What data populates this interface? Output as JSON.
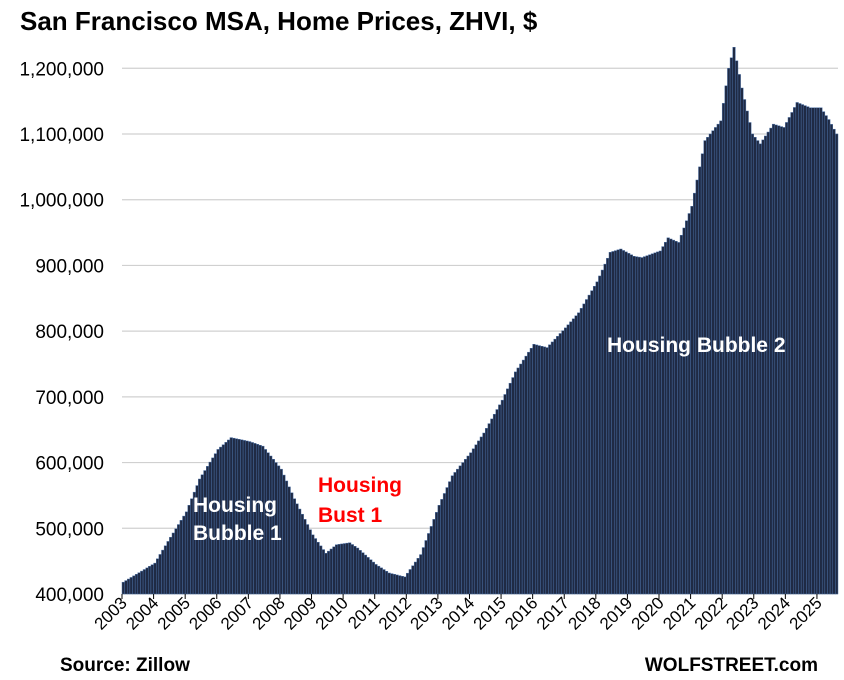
{
  "chart_data": {
    "type": "bar",
    "title": "San Francisco MSA, Home Prices, ZHVI, $",
    "ylim": [
      400000,
      1240000
    ],
    "yticks": [
      400000,
      500000,
      600000,
      700000,
      800000,
      900000,
      1000000,
      1100000,
      1200000
    ],
    "ytick_labels": [
      "400,000",
      "500,000",
      "600,000",
      "700,000",
      "800,000",
      "900,000",
      "1,000,000",
      "1,100,000",
      "1,200,000"
    ],
    "xtick_labels": [
      "2003",
      "2004",
      "2005",
      "2006",
      "2007",
      "2008",
      "2009",
      "2010",
      "2011",
      "2012",
      "2013",
      "2014",
      "2015",
      "2016",
      "2017",
      "2018",
      "2019",
      "2020",
      "2021",
      "2022",
      "2023",
      "2024",
      "2025"
    ],
    "x_start": "2003-01",
    "x_end": "2025-08",
    "grid": true,
    "series": [
      {
        "key_points": [
          {
            "date": "2003-01",
            "value": 418000
          },
          {
            "date": "2003-06",
            "value": 430000
          },
          {
            "date": "2004-01",
            "value": 447000
          },
          {
            "date": "2004-06",
            "value": 480000
          },
          {
            "date": "2005-01",
            "value": 525000
          },
          {
            "date": "2005-06",
            "value": 575000
          },
          {
            "date": "2006-01",
            "value": 620000
          },
          {
            "date": "2006-06",
            "value": 638000
          },
          {
            "date": "2007-01",
            "value": 632000
          },
          {
            "date": "2007-06",
            "value": 625000
          },
          {
            "date": "2008-01",
            "value": 590000
          },
          {
            "date": "2008-06",
            "value": 545000
          },
          {
            "date": "2009-01",
            "value": 490000
          },
          {
            "date": "2009-06",
            "value": 462000
          },
          {
            "date": "2009-10",
            "value": 475000
          },
          {
            "date": "2010-03",
            "value": 478000
          },
          {
            "date": "2010-06",
            "value": 470000
          },
          {
            "date": "2011-01",
            "value": 445000
          },
          {
            "date": "2011-06",
            "value": 432000
          },
          {
            "date": "2011-12",
            "value": 426000
          },
          {
            "date": "2012-06",
            "value": 460000
          },
          {
            "date": "2013-01",
            "value": 535000
          },
          {
            "date": "2013-06",
            "value": 580000
          },
          {
            "date": "2014-01",
            "value": 615000
          },
          {
            "date": "2014-06",
            "value": 645000
          },
          {
            "date": "2015-01",
            "value": 695000
          },
          {
            "date": "2015-06",
            "value": 738000
          },
          {
            "date": "2016-01",
            "value": 780000
          },
          {
            "date": "2016-06",
            "value": 775000
          },
          {
            "date": "2017-01",
            "value": 805000
          },
          {
            "date": "2017-06",
            "value": 828000
          },
          {
            "date": "2018-01",
            "value": 875000
          },
          {
            "date": "2018-06",
            "value": 920000
          },
          {
            "date": "2018-10",
            "value": 925000
          },
          {
            "date": "2019-03",
            "value": 914000
          },
          {
            "date": "2019-06",
            "value": 912000
          },
          {
            "date": "2020-01",
            "value": 922000
          },
          {
            "date": "2020-04",
            "value": 942000
          },
          {
            "date": "2020-08",
            "value": 935000
          },
          {
            "date": "2021-01",
            "value": 990000
          },
          {
            "date": "2021-06",
            "value": 1090000
          },
          {
            "date": "2021-12",
            "value": 1120000
          },
          {
            "date": "2022-03",
            "value": 1200000
          },
          {
            "date": "2022-05",
            "value": 1232000
          },
          {
            "date": "2022-08",
            "value": 1170000
          },
          {
            "date": "2022-12",
            "value": 1100000
          },
          {
            "date": "2023-03",
            "value": 1085000
          },
          {
            "date": "2023-08",
            "value": 1115000
          },
          {
            "date": "2023-12",
            "value": 1110000
          },
          {
            "date": "2024-05",
            "value": 1148000
          },
          {
            "date": "2024-10",
            "value": 1140000
          },
          {
            "date": "2025-02",
            "value": 1140000
          },
          {
            "date": "2025-05",
            "value": 1122000
          },
          {
            "date": "2025-08",
            "value": 1100000
          }
        ]
      }
    ],
    "annotations": [
      {
        "text": "Housing Bubble 1",
        "lines": [
          "Housing",
          "Bubble 1"
        ],
        "color": "#ffffff"
      },
      {
        "text": "Housing Bust 1",
        "lines": [
          "Housing",
          "Bust 1"
        ],
        "color": "#ff0000"
      },
      {
        "text": "Housing Bubble 2",
        "lines": [
          "Housing Bubble 2"
        ],
        "color": "#ffffff"
      }
    ],
    "colors": {
      "bar_fill": "#1f2a44",
      "bar_stroke": "#4a6fa5",
      "grid": "#d0d0d0"
    }
  },
  "footer": {
    "source": "Source: Zillow",
    "brand": "WOLFSTREET.com"
  }
}
